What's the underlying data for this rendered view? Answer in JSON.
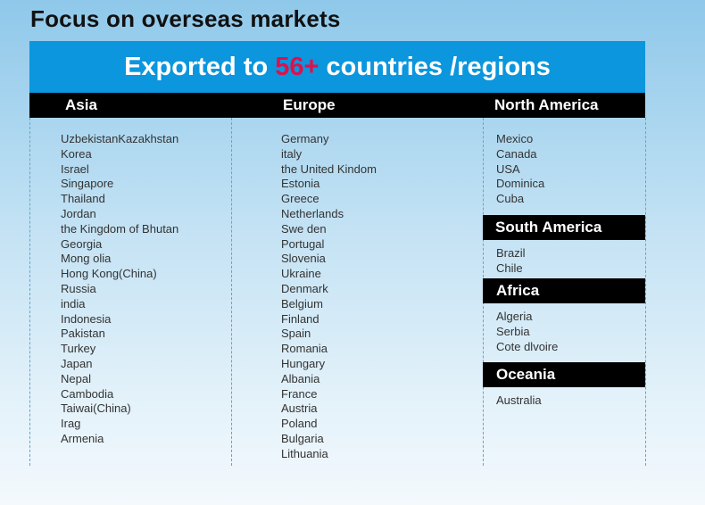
{
  "page": {
    "title": "Focus on overseas markets"
  },
  "banner": {
    "prefix": "Exported to ",
    "highlight": "56+",
    "suffix": " countries /regions",
    "highlight_color": "#e0104a",
    "background_color": "#0b96dd"
  },
  "regions": {
    "asia": {
      "header": "Asia",
      "countries": [
        "UzbekistanKazakhstan",
        "Korea",
        "Israel",
        "Singapore",
        "Thailand",
        "Jordan",
        "the Kingdom of Bhutan",
        "Georgia",
        "Mong olia",
        "Hong Kong(China)",
        "Russia",
        "india",
        "Indonesia",
        "Pakistan",
        "Turkey",
        "Japan",
        "Nepal",
        "Cambodia",
        "Taiwai(China)",
        "Irag",
        "Armenia"
      ]
    },
    "europe": {
      "header": "Europe",
      "countries": [
        "Germany",
        "italy",
        "the United Kindom",
        "Estonia",
        "Greece",
        "Netherlands",
        "Swe den",
        "Portugal",
        "Slovenia",
        "Ukraine",
        "Denmark",
        "Belgium",
        "Finland",
        "Spain",
        "Romania",
        "Hungary",
        "Albania",
        "France",
        "Austria",
        "Poland",
        "Bulgaria",
        "Lithuania"
      ]
    },
    "north_america": {
      "header": "North America",
      "countries": [
        "Mexico",
        "Canada",
        "USA",
        "Dominica",
        "Cuba"
      ]
    },
    "south_america": {
      "header": "South America",
      "countries": [
        "Brazil",
        "Chile"
      ]
    },
    "africa": {
      "header": "Africa",
      "countries": [
        "Algeria",
        "Serbia",
        "Cote dlvoire"
      ]
    },
    "oceania": {
      "header": "Oceania",
      "countries": [
        "Australia"
      ]
    }
  }
}
